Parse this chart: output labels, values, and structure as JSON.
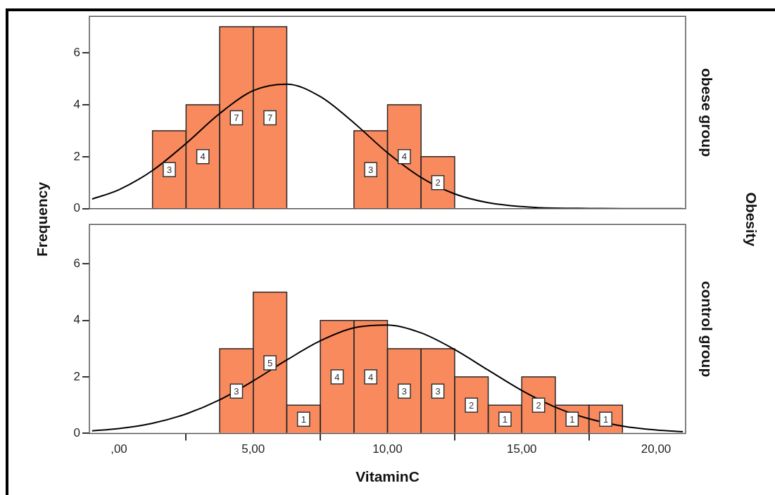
{
  "chart_data": [
    {
      "type": "histogram",
      "y2label": "obese group",
      "ylabel": "Frequency",
      "annotations": [
        "Obesity"
      ],
      "bins": [
        1.25,
        2.5,
        3.75,
        5.0,
        6.25,
        7.5,
        8.75,
        10.0,
        11.25,
        12.5
      ],
      "values": [
        3,
        4,
        7,
        7,
        0,
        0,
        3,
        4,
        2
      ],
      "value_labels": [
        "3",
        "4",
        "7",
        "7",
        null,
        null,
        "3",
        "4",
        "2"
      ],
      "color": "#f98a5e",
      "series": [
        {
          "type": "line",
          "color": "#000000",
          "x": [
            -1,
            0,
            1.25,
            2.5,
            3.75,
            5,
            6.25,
            7.5,
            8.75,
            10,
            11.25,
            12.5,
            13.75,
            15,
            16.25,
            17.5,
            18.75,
            20,
            21
          ],
          "values": [
            0.37,
            0.73,
            1.47,
            2.51,
            3.66,
            4.54,
            4.79,
            4.31,
            3.3,
            2.15,
            1.2,
            0.57,
            0.23,
            0.08,
            0.02,
            0.01,
            0,
            0,
            0
          ]
        }
      ],
      "xlim": [
        -1.1,
        21.1
      ],
      "ylim": [
        0,
        7.4
      ],
      "yticks": [
        0,
        2,
        4,
        6
      ],
      "tick_labels": "y",
      "grid": false,
      "legend": false
    },
    {
      "type": "histogram",
      "y2label": "control group",
      "xlabel": "VitaminC",
      "bins": [
        3.75,
        5.0,
        6.25,
        7.5,
        8.75,
        10.0,
        11.25,
        12.5,
        13.75,
        15.0,
        16.25,
        17.5,
        18.75
      ],
      "values": [
        3,
        5,
        1,
        4,
        4,
        3,
        3,
        2,
        1,
        2,
        1,
        1
      ],
      "value_labels": [
        "3",
        "5",
        "1",
        "4",
        "4",
        "3",
        "3",
        "2",
        "1",
        "2",
        "1",
        "1"
      ],
      "color": "#f98a5e",
      "series": [
        {
          "type": "line",
          "color": "#000000",
          "x": [
            -1,
            0,
            1.25,
            2.5,
            3.75,
            5,
            6.25,
            7.5,
            8.75,
            10,
            11.25,
            12.5,
            13.75,
            15,
            16.25,
            17.5,
            18.75,
            20,
            21
          ],
          "values": [
            0.09,
            0.17,
            0.36,
            0.69,
            1.19,
            1.86,
            2.6,
            3.28,
            3.74,
            3.84,
            3.56,
            2.97,
            2.24,
            1.52,
            0.93,
            0.52,
            0.26,
            0.12,
            0.06
          ]
        }
      ],
      "xlim": [
        -1.1,
        21.1
      ],
      "xticks": [
        {
          "value": 0,
          "label": ",00"
        },
        {
          "value": 5,
          "label": "5,00"
        },
        {
          "value": 10,
          "label": "10,00"
        },
        {
          "value": 15,
          "label": "15,00"
        },
        {
          "value": 20,
          "label": "20,00"
        }
      ],
      "ylim": [
        0,
        7.4
      ],
      "yticks": [
        0,
        2,
        4,
        6
      ],
      "grid": false,
      "legend": false
    }
  ]
}
